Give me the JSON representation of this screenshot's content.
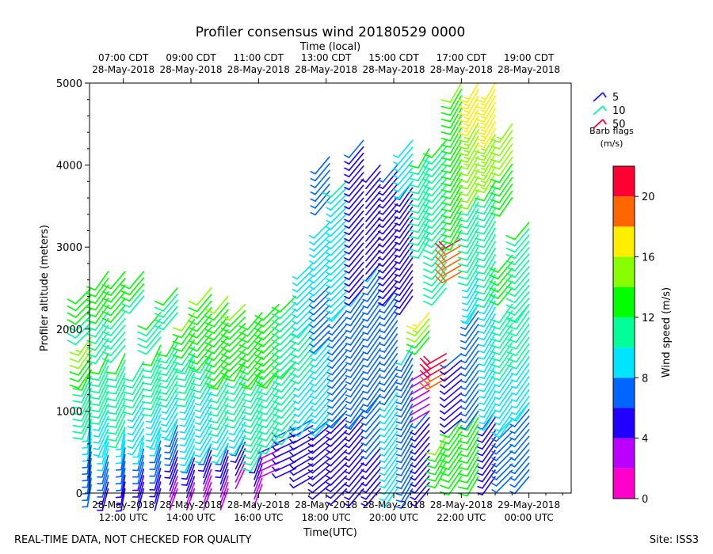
{
  "chart_data": {
    "type": "wind-barb-time-height",
    "title": "Profiler consensus wind 20180529 0000",
    "xlabel_top": "Time (local)",
    "xlabel_bottom": "Time(UTC)",
    "ylabel": "Profiler altitude (meters)",
    "ylim": [
      0,
      5000
    ],
    "yticks": [
      0,
      1000,
      2000,
      3000,
      4000,
      5000
    ],
    "xlim_utc_hours": [
      11.0,
      25.25
    ],
    "bottom_ticks": [
      {
        "hour": 12,
        "date": "28-May-2018",
        "time": "12:00 UTC"
      },
      {
        "hour": 14,
        "date": "28-May-2018",
        "time": "14:00 UTC"
      },
      {
        "hour": 16,
        "date": "28-May-2018",
        "time": "16:00 UTC"
      },
      {
        "hour": 18,
        "date": "28-May-2018",
        "time": "18:00 UTC"
      },
      {
        "hour": 20,
        "date": "28-May-2018",
        "time": "20:00 UTC"
      },
      {
        "hour": 22,
        "date": "28-May-2018",
        "time": "22:00 UTC"
      },
      {
        "hour": 24,
        "date": "29-May-2018",
        "time": "00:00 UTC"
      }
    ],
    "top_ticks": [
      {
        "hour": 12,
        "time": "07:00 CDT",
        "date": "28-May-2018"
      },
      {
        "hour": 14,
        "time": "09:00 CDT",
        "date": "28-May-2018"
      },
      {
        "hour": 16,
        "time": "11:00 CDT",
        "date": "28-May-2018"
      },
      {
        "hour": 18,
        "time": "13:00 CDT",
        "date": "28-May-2018"
      },
      {
        "hour": 20,
        "time": "15:00 CDT",
        "date": "28-May-2018"
      },
      {
        "hour": 22,
        "time": "17:00 CDT",
        "date": "28-May-2018"
      },
      {
        "hour": 24,
        "time": "19:00 CDT",
        "date": "28-May-2018"
      }
    ],
    "barb_legend": {
      "entries": [
        {
          "label": "5",
          "color": "#1a1aff"
        },
        {
          "label": "10",
          "color": "#00ff99"
        },
        {
          "label": "50",
          "color": "#ff0033"
        }
      ],
      "caption_line1": "Barb flags",
      "caption_line2": "(m/s)"
    },
    "colorbar": {
      "label": "Wind speed (m/s)",
      "min": 0,
      "max": 22,
      "tick_values": [
        0,
        4,
        8,
        12,
        16,
        20
      ],
      "bins": [
        {
          "from": 0,
          "to": 2,
          "color": "#ff00cc"
        },
        {
          "from": 2,
          "to": 4,
          "color": "#bb00ff"
        },
        {
          "from": 4,
          "to": 6,
          "color": "#2200ff"
        },
        {
          "from": 6,
          "to": 8,
          "color": "#0066ff"
        },
        {
          "from": 8,
          "to": 10,
          "color": "#00e5ff"
        },
        {
          "from": 10,
          "to": 12,
          "color": "#00ff99"
        },
        {
          "from": 12,
          "to": 14,
          "color": "#00ff00"
        },
        {
          "from": 14,
          "to": 16,
          "color": "#88ff00"
        },
        {
          "from": 16,
          "to": 18,
          "color": "#ffee00"
        },
        {
          "from": 18,
          "to": 20,
          "color": "#ff6600"
        },
        {
          "from": 20,
          "to": 22,
          "color": "#ff0033"
        }
      ]
    },
    "profiles": [
      {
        "hour": 11.05,
        "segments": [
          {
            "z0": 100,
            "z1": 900,
            "s0": 6,
            "s1": 9,
            "dir": 190
          },
          {
            "z0": 900,
            "z1": 1500,
            "s0": 10,
            "s1": 12,
            "dir": 205
          },
          {
            "z0": 1500,
            "z1": 1900,
            "s0": 13,
            "s1": 15,
            "dir": 215
          },
          {
            "z0": 2000,
            "z1": 2500,
            "s0": 11,
            "s1": 13,
            "dir": 225
          }
        ]
      },
      {
        "hour": 11.55,
        "segments": [
          {
            "z0": 50,
            "z1": 700,
            "s0": 5,
            "s1": 9,
            "dir": 195
          },
          {
            "z0": 700,
            "z1": 1700,
            "s0": 9,
            "s1": 12,
            "dir": 205
          },
          {
            "z0": 1800,
            "z1": 2700,
            "s0": 11,
            "s1": 13,
            "dir": 215
          }
        ]
      },
      {
        "hour": 12.05,
        "segments": [
          {
            "z0": 50,
            "z1": 800,
            "s0": 5,
            "s1": 9,
            "dir": 190
          },
          {
            "z0": 800,
            "z1": 1700,
            "s0": 10,
            "s1": 12,
            "dir": 205
          },
          {
            "z0": 1800,
            "z1": 2700,
            "s0": 11,
            "s1": 13,
            "dir": 220
          }
        ]
      },
      {
        "hour": 12.6,
        "segments": [
          {
            "z0": 50,
            "z1": 700,
            "s0": 4,
            "s1": 9,
            "dir": 195
          },
          {
            "z0": 700,
            "z1": 1600,
            "s0": 9,
            "s1": 11,
            "dir": 210
          },
          {
            "z0": 2400,
            "z1": 2700,
            "s0": 11,
            "s1": 13,
            "dir": 220
          }
        ]
      },
      {
        "hour": 13.1,
        "segments": [
          {
            "z0": 50,
            "z1": 800,
            "s0": 4,
            "s1": 9,
            "dir": 195
          },
          {
            "z0": 800,
            "z1": 1800,
            "s0": 9,
            "s1": 12,
            "dir": 205
          },
          {
            "z0": 1900,
            "z1": 2200,
            "s0": 11,
            "s1": 12,
            "dir": 220
          }
        ]
      },
      {
        "hour": 13.6,
        "segments": [
          {
            "z0": 50,
            "z1": 900,
            "s0": 3,
            "s1": 8,
            "dir": 200
          },
          {
            "z0": 900,
            "z1": 1900,
            "s0": 9,
            "s1": 12,
            "dir": 210
          },
          {
            "z0": 2200,
            "z1": 2500,
            "s0": 11,
            "s1": 12,
            "dir": 220
          }
        ]
      },
      {
        "hour": 14.1,
        "segments": [
          {
            "z0": 50,
            "z1": 500,
            "s0": 3,
            "s1": 6,
            "dir": 200
          },
          {
            "z0": 500,
            "z1": 1700,
            "s0": 8,
            "s1": 11,
            "dir": 205
          },
          {
            "z0": 1700,
            "z1": 2200,
            "s0": 11,
            "s1": 14,
            "dir": 215
          }
        ]
      },
      {
        "hour": 14.6,
        "segments": [
          {
            "z0": 50,
            "z1": 600,
            "s0": 2,
            "s1": 6,
            "dir": 200
          },
          {
            "z0": 600,
            "z1": 1700,
            "s0": 8,
            "s1": 11,
            "dir": 210
          },
          {
            "z0": 1700,
            "z1": 2500,
            "s0": 12,
            "s1": 14,
            "dir": 220
          }
        ]
      },
      {
        "hour": 15.1,
        "segments": [
          {
            "z0": 50,
            "z1": 600,
            "s0": 3,
            "s1": 6,
            "dir": 200
          },
          {
            "z0": 600,
            "z1": 1500,
            "s0": 9,
            "s1": 12,
            "dir": 210
          },
          {
            "z0": 1500,
            "z1": 2400,
            "s0": 12,
            "s1": 14,
            "dir": 220
          }
        ]
      },
      {
        "hour": 15.6,
        "segments": [
          {
            "z0": 300,
            "z1": 700,
            "s0": 3,
            "s1": 6,
            "dir": 205
          },
          {
            "z0": 700,
            "z1": 1600,
            "s0": 9,
            "s1": 12,
            "dir": 210
          },
          {
            "z0": 1600,
            "z1": 2300,
            "s0": 12,
            "s1": 14,
            "dir": 225
          }
        ]
      },
      {
        "hour": 16.1,
        "segments": [
          {
            "z0": 100,
            "z1": 500,
            "s0": 3,
            "s1": 5,
            "dir": 200
          },
          {
            "z0": 500,
            "z1": 1500,
            "s0": 10,
            "s1": 12,
            "dir": 210
          },
          {
            "z0": 1500,
            "z1": 2200,
            "s0": 12,
            "s1": 13,
            "dir": 220
          }
        ]
      },
      {
        "hour": 16.6,
        "segments": [
          {
            "z0": 300,
            "z1": 600,
            "s0": 2,
            "s1": 4,
            "dir": 245
          },
          {
            "z0": 700,
            "z1": 1500,
            "s0": 10,
            "s1": 12,
            "dir": 215
          },
          {
            "z0": 1500,
            "z1": 2300,
            "s0": 12,
            "s1": 13,
            "dir": 225
          }
        ]
      },
      {
        "hour": 17.1,
        "segments": [
          {
            "z0": 300,
            "z1": 800,
            "s0": 5,
            "s1": 6,
            "dir": 245
          },
          {
            "z0": 800,
            "z1": 1600,
            "s0": 10,
            "s1": 12,
            "dir": 220
          },
          {
            "z0": 1600,
            "z1": 2400,
            "s0": 11,
            "s1": 12,
            "dir": 225
          }
        ]
      },
      {
        "hour": 17.6,
        "segments": [
          {
            "z0": 200,
            "z1": 900,
            "s0": 5,
            "s1": 6,
            "dir": 240
          },
          {
            "z0": 900,
            "z1": 2100,
            "s0": 9,
            "s1": 11,
            "dir": 220
          },
          {
            "z0": 2100,
            "z1": 2800,
            "s0": 8,
            "s1": 9,
            "dir": 225
          }
        ]
      },
      {
        "hour": 18.1,
        "segments": [
          {
            "z0": 100,
            "z1": 900,
            "s0": 5,
            "s1": 6,
            "dir": 230
          },
          {
            "z0": 900,
            "z1": 1900,
            "s0": 8,
            "s1": 9,
            "dir": 220
          },
          {
            "z0": 1900,
            "z1": 3300,
            "s0": 7,
            "s1": 9,
            "dir": 225
          },
          {
            "z0": 3600,
            "z1": 4100,
            "s0": 6,
            "s1": 7,
            "dir": 220
          }
        ]
      },
      {
        "hour": 18.6,
        "segments": [
          {
            "z0": 50,
            "z1": 1000,
            "s0": 5,
            "s1": 6,
            "dir": 225
          },
          {
            "z0": 1000,
            "z1": 2300,
            "s0": 7,
            "s1": 8,
            "dir": 220
          },
          {
            "z0": 2300,
            "z1": 3800,
            "s0": 8,
            "s1": 10,
            "dir": 225
          }
        ]
      },
      {
        "hour": 19.1,
        "segments": [
          {
            "z0": 50,
            "z1": 1000,
            "s0": 5,
            "s1": 6,
            "dir": 220
          },
          {
            "z0": 1000,
            "z1": 2500,
            "s0": 7,
            "s1": 8,
            "dir": 215
          },
          {
            "z0": 2500,
            "z1": 4300,
            "s0": 5,
            "s1": 6,
            "dir": 220
          }
        ]
      },
      {
        "hour": 19.6,
        "segments": [
          {
            "z0": 50,
            "z1": 1200,
            "s0": 5,
            "s1": 7,
            "dir": 220
          },
          {
            "z0": 1200,
            "z1": 2800,
            "s0": 6,
            "s1": 8,
            "dir": 215
          },
          {
            "z0": 2800,
            "z1": 4000,
            "s0": 4,
            "s1": 5,
            "dir": 220
          }
        ]
      },
      {
        "hour": 20.1,
        "segments": [
          {
            "z0": 50,
            "z1": 1300,
            "s0": 8,
            "s1": 9,
            "dir": 215
          },
          {
            "z0": 1300,
            "z1": 2500,
            "s0": 6,
            "s1": 7,
            "dir": 215
          },
          {
            "z0": 2500,
            "z1": 4000,
            "s0": 5,
            "s1": 6,
            "dir": 220
          }
        ]
      },
      {
        "hour": 20.55,
        "segments": [
          {
            "z0": 50,
            "z1": 1800,
            "s0": 7,
            "s1": 8,
            "dir": 210
          },
          {
            "z0": 2400,
            "z1": 3800,
            "s0": 5,
            "s1": 6,
            "dir": 215
          },
          {
            "z0": 3800,
            "z1": 4300,
            "s0": 8,
            "s1": 9,
            "dir": 220
          }
        ]
      },
      {
        "hour": 21.05,
        "segments": [
          {
            "z0": 50,
            "z1": 1000,
            "s0": 5,
            "s1": 6,
            "dir": 220
          },
          {
            "z0": 1000,
            "z1": 1500,
            "s0": 2,
            "s1": 3,
            "dir": 240
          },
          {
            "z0": 1900,
            "z1": 2200,
            "s0": 13,
            "s1": 16,
            "dir": 220
          },
          {
            "z0": 3100,
            "z1": 4200,
            "s0": 10,
            "s1": 12,
            "dir": 210
          }
        ]
      },
      {
        "hour": 21.55,
        "segments": [
          {
            "z0": 300,
            "z1": 700,
            "s0": 13,
            "s1": 14,
            "dir": 210
          },
          {
            "z0": 1400,
            "z1": 1700,
            "s0": 19,
            "s1": 21,
            "dir": 240
          },
          {
            "z0": 2500,
            "z1": 4300,
            "s0": 10,
            "s1": 12,
            "dir": 220
          }
        ]
      },
      {
        "hour": 22.0,
        "segments": [
          {
            "z0": 200,
            "z1": 900,
            "s0": 12,
            "s1": 13,
            "dir": 215
          },
          {
            "z0": 900,
            "z1": 1700,
            "s0": 5,
            "s1": 6,
            "dir": 230
          },
          {
            "z0": 2700,
            "z1": 3100,
            "s0": 19,
            "s1": 20,
            "dir": 240
          },
          {
            "z0": 3200,
            "z1": 5000,
            "s0": 12,
            "s1": 14,
            "dir": 210
          }
        ]
      },
      {
        "hour": 22.5,
        "segments": [
          {
            "z0": 200,
            "z1": 1000,
            "s0": 12,
            "s1": 13,
            "dir": 210
          },
          {
            "z0": 1000,
            "z1": 2300,
            "s0": 6,
            "s1": 8,
            "dir": 215
          },
          {
            "z0": 2300,
            "z1": 3700,
            "s0": 9,
            "s1": 12,
            "dir": 210
          },
          {
            "z0": 3700,
            "z1": 5000,
            "s0": 14,
            "s1": 17,
            "dir": 210
          }
        ]
      },
      {
        "hour": 23.0,
        "segments": [
          {
            "z0": 200,
            "z1": 1000,
            "s0": 5,
            "s1": 6,
            "dir": 215
          },
          {
            "z0": 1000,
            "z1": 2500,
            "s0": 8,
            "s1": 10,
            "dir": 210
          },
          {
            "z0": 2500,
            "z1": 3800,
            "s0": 10,
            "s1": 12,
            "dir": 210
          },
          {
            "z0": 3900,
            "z1": 5000,
            "s0": 15,
            "s1": 17,
            "dir": 210
          }
        ]
      },
      {
        "hour": 23.5,
        "segments": [
          {
            "z0": 200,
            "z1": 900,
            "s0": 6,
            "s1": 8,
            "dir": 225
          },
          {
            "z0": 900,
            "z1": 2300,
            "s0": 9,
            "s1": 11,
            "dir": 215
          },
          {
            "z0": 2500,
            "z1": 2900,
            "s0": 12,
            "s1": 13,
            "dir": 220
          },
          {
            "z0": 3600,
            "z1": 4500,
            "s0": 13,
            "s1": 15,
            "dir": 215
          }
        ]
      },
      {
        "hour": 24.0,
        "segments": [
          {
            "z0": 200,
            "z1": 1100,
            "s0": 6,
            "s1": 8,
            "dir": 220
          },
          {
            "z0": 1100,
            "z1": 2300,
            "s0": 9,
            "s1": 11,
            "dir": 215
          },
          {
            "z0": 2300,
            "z1": 3300,
            "s0": 11,
            "s1": 12,
            "dir": 220
          }
        ]
      }
    ],
    "footer_left": "REAL-TIME DATA, NOT CHECKED FOR QUALITY",
    "footer_right": "Site: ISS3"
  }
}
